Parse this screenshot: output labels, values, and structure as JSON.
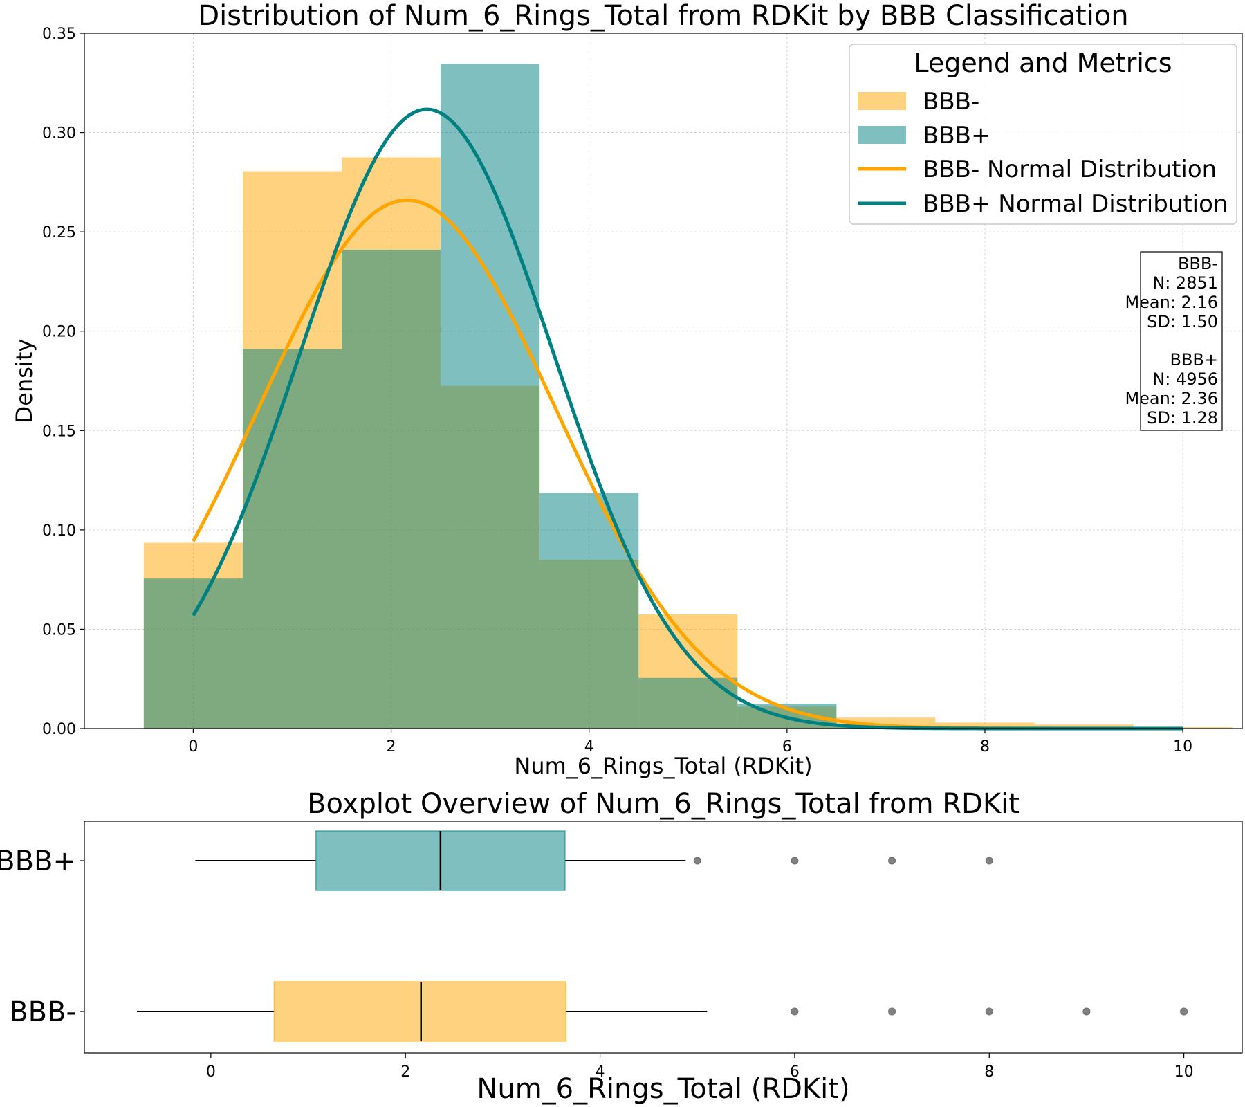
{
  "chart_data": [
    {
      "type": "histogram",
      "title": "Distribution of Num_6_Rings_Total from RDKit by BBB Classification",
      "xlabel": "Num_6_Rings_Total (RDKit)",
      "ylabel": "Density",
      "xlim": [
        -1.1,
        10.6
      ],
      "ylim": [
        0,
        0.35
      ],
      "xticks": [
        0,
        2,
        4,
        6,
        8,
        10
      ],
      "yticks": [
        "0.00",
        "0.05",
        "0.10",
        "0.15",
        "0.20",
        "0.25",
        "0.30",
        "0.35"
      ],
      "grid": true,
      "bin_edges": [
        -0.5,
        0.5,
        1.5,
        2.5,
        3.5,
        4.5,
        5.5,
        6.5,
        7.5,
        8.5,
        9.5,
        10.5
      ],
      "series": [
        {
          "name": "BBB-",
          "color": "#FFA500",
          "values": [
            0.0935,
            0.2805,
            0.2875,
            0.1725,
            0.085,
            0.0575,
            0.011,
            0.0055,
            0.003,
            0.002,
            0.0007
          ]
        },
        {
          "name": "BBB+",
          "color": "#008080",
          "values": [
            0.0755,
            0.191,
            0.241,
            0.3345,
            0.1185,
            0.0255,
            0.0125,
            0.001,
            0.0004,
            0.0,
            0.0
          ]
        }
      ],
      "curves": [
        {
          "name": "BBB- Normal Distribution",
          "color": "#FFA500",
          "mean": 2.16,
          "sd": 1.5,
          "x_range": [
            0,
            10
          ]
        },
        {
          "name": "BBB+ Normal Distribution",
          "color": "#008080",
          "mean": 2.36,
          "sd": 1.28,
          "x_range": [
            0,
            10
          ]
        }
      ],
      "legend": {
        "title": "Legend and Metrics",
        "placement": "top-right",
        "entries": [
          "BBB-",
          "BBB+",
          "BBB- Normal Distribution",
          "BBB+ Normal Distribution"
        ]
      },
      "metrics": {
        "placement": "right",
        "groups": [
          {
            "name": "BBB-",
            "lines": [
              "BBB-",
              "N: 2851",
              "Mean: 2.16",
              "SD: 1.50"
            ]
          },
          {
            "name": "BBB+",
            "lines": [
              "BBB+",
              "N: 4956",
              "Mean: 2.36",
              "SD: 1.28"
            ]
          }
        ]
      }
    },
    {
      "type": "boxplot",
      "title": "Boxplot Overview of Num_6_Rings_Total from RDKit",
      "xlabel": "Num_6_Rings_Total (RDKit)",
      "xlim": [
        -1.3,
        10.6
      ],
      "xticks": [
        0,
        2,
        4,
        6,
        8,
        10
      ],
      "categories": [
        "BBB+",
        "BBB-"
      ],
      "series": [
        {
          "name": "BBB+",
          "color": "#008080",
          "whisker_low": -0.16,
          "q1": 1.08,
          "median": 2.36,
          "q3": 3.64,
          "whisker_high": 4.88,
          "outliers": [
            5,
            6,
            7,
            8
          ]
        },
        {
          "name": "BBB-",
          "color": "#FFA500",
          "whisker_low": -0.76,
          "q1": 0.65,
          "median": 2.16,
          "q3": 3.65,
          "whisker_high": 5.1,
          "outliers": [
            6,
            7,
            8,
            9,
            10
          ]
        }
      ]
    }
  ]
}
